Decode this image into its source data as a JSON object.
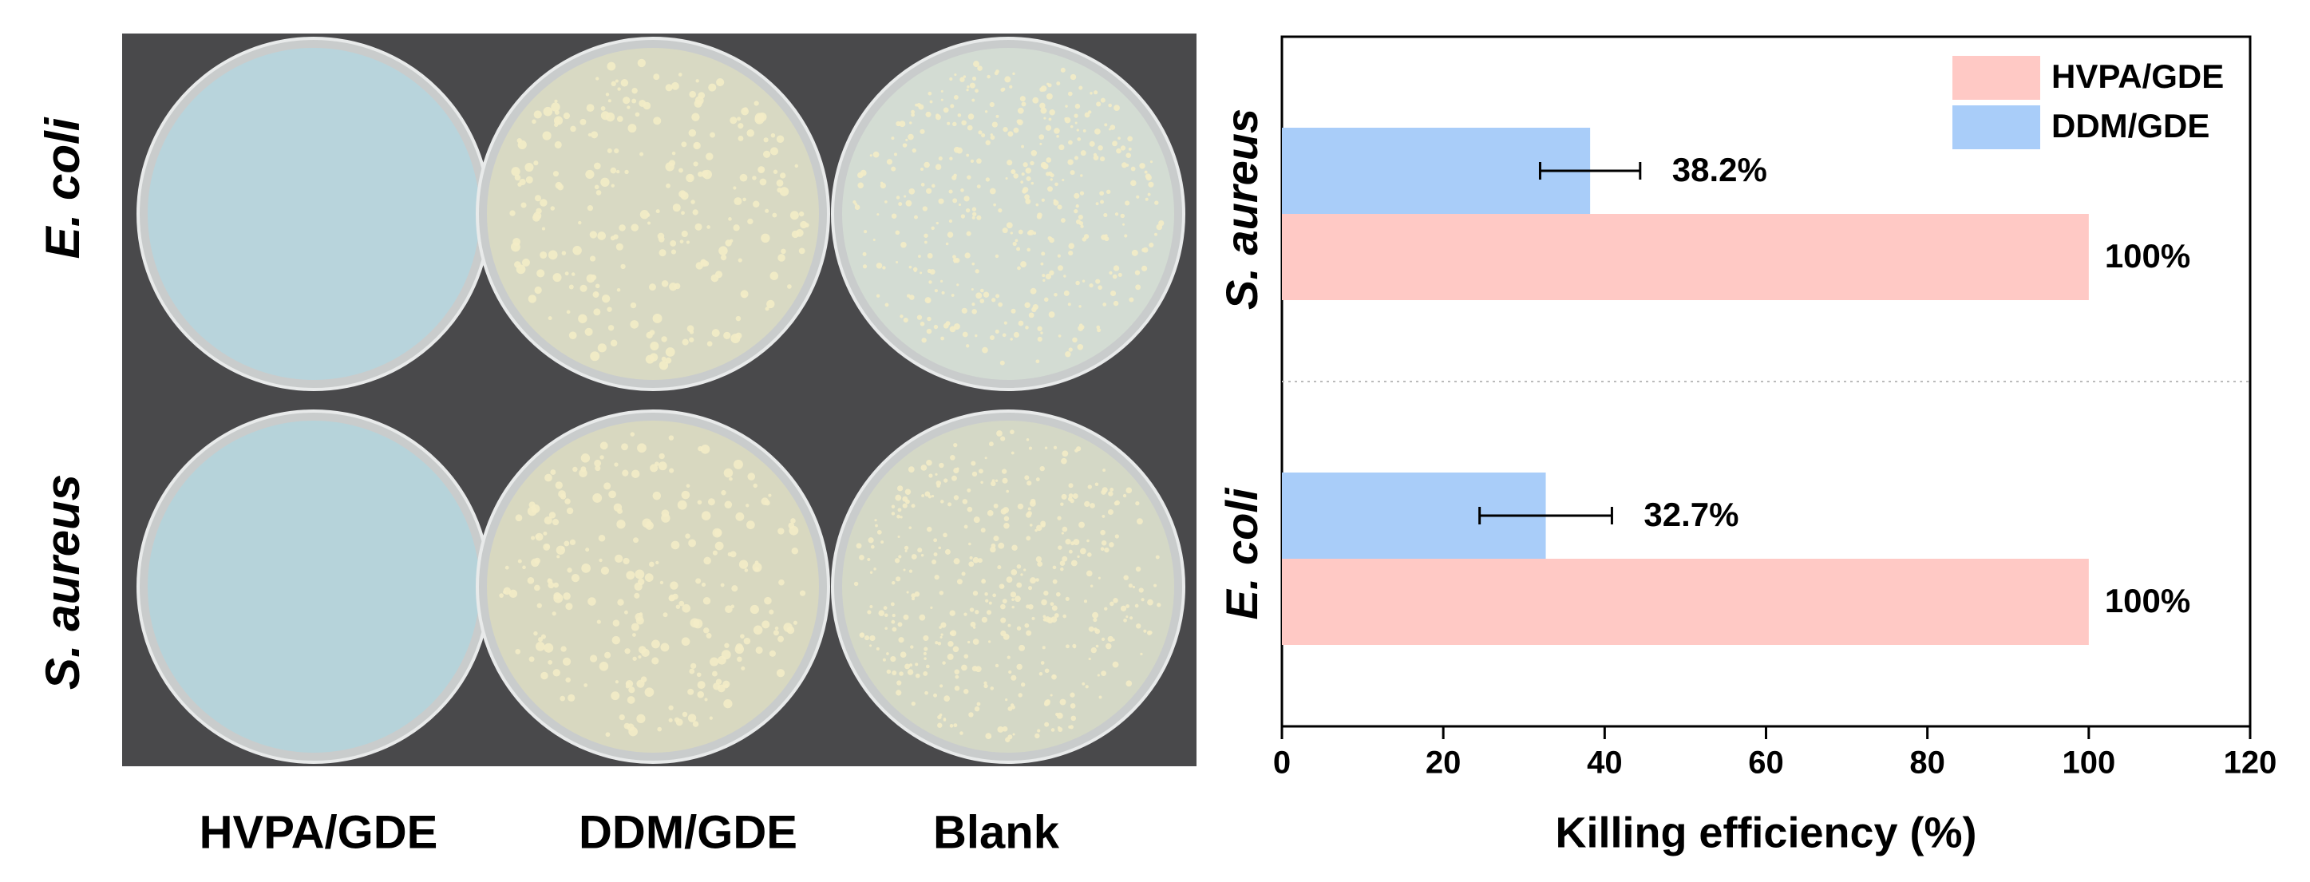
{
  "photo": {
    "row_labels": [
      "E. coli",
      "S. aureus"
    ],
    "column_labels": [
      "HVPA/GDE",
      "DDM/GDE",
      "Blank"
    ]
  },
  "chart_data": {
    "type": "bar",
    "orientation": "horizontal",
    "categories": [
      "S. aureus",
      "E. coli"
    ],
    "series": [
      {
        "name": "HVPA/GDE",
        "color": "#ffc9c5",
        "values": [
          100,
          100
        ],
        "value_labels": [
          "100%",
          "100%"
        ]
      },
      {
        "name": "DDM/GDE",
        "color": "#a9cdf9",
        "values": [
          38.2,
          32.7
        ],
        "value_labels": [
          "38.2%",
          "32.7%"
        ],
        "errors": [
          6.2,
          8.2
        ]
      }
    ],
    "x_label": "Killing efficiency (%)",
    "xlim": [
      0,
      120
    ],
    "xticks": [
      0,
      20,
      40,
      60,
      80,
      100,
      120
    ],
    "legend": "top-right"
  }
}
